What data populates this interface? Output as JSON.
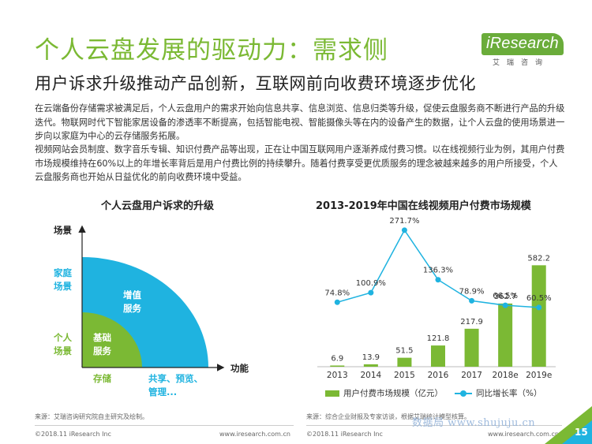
{
  "header": {
    "title": "个人云盘发展的驱动力：需求侧",
    "subtitle": "用户诉求升级推动产品创新，互联网前向收费环境逐步优化"
  },
  "logo": {
    "text": "iResearch",
    "cn": "艾瑞咨询"
  },
  "body": {
    "para1": "在云端备份存储需求被满足后，个人云盘用户的需求开始向信息共享、信息浏览、信息归类等升级，促使云盘服务商不断进行产品的升级迭代。物联网时代下智能家居设备的渗透率不断提高，包括智能电视、智能摄像头等在内的设备产生的数据，让个人云盘的使用场景进一步向以家庭为中心的云存储服务拓展。",
    "para2": "视频网站会员制度、数字音乐专辑、知识付费产品等出现，正在让中国互联网用户逐渐养成付费习惯。以在线视频行业为例，其用户付费市场规模维持在60%以上的年增长率背后是用户付费比例的持续攀升。随着付费享受更优质服务的理念被越来越多的用户所接受，个人云盘服务商也开始从日益优化的前向收费环境中受益。"
  },
  "diagram": {
    "title": "个人云盘用户诉求的升级",
    "y_axis_label": "场景",
    "x_axis_label": "功能",
    "scene_family": "家庭\n场景",
    "scene_personal": "个人\n场景",
    "value_added": "增值\n服务",
    "basic": "基础\n服务",
    "func_storage": "存储",
    "func_share": "共享、预览、\n管理...",
    "colors": {
      "outer": "#1fb3e0",
      "inner": "#7bb934"
    }
  },
  "chart_data": {
    "type": "bar",
    "title": "2013-2019年中国在线视频用户付费市场规模",
    "categories": [
      "2013",
      "2014",
      "2015",
      "2016",
      "2017",
      "2018e",
      "2019e"
    ],
    "series": [
      {
        "name": "用户付费市场规模（亿元）",
        "type": "bar",
        "values": [
          6.9,
          13.9,
          51.5,
          121.8,
          217.9,
          362.7,
          582.2
        ]
      },
      {
        "name": "同比增长率（%）",
        "type": "line",
        "values": [
          74.8,
          100.9,
          271.7,
          136.3,
          78.9,
          66.5,
          60.5
        ],
        "labels": [
          "74.8%",
          "100.9%",
          "271.7%",
          "136.3%",
          "78.9%",
          "66.5%",
          "60.5%"
        ]
      }
    ],
    "bar_labels": [
      "6.9",
      "13.9",
      "51.5",
      "121.8",
      "217.9",
      "362.7",
      "582.2"
    ],
    "ylim": [
      0,
      620
    ],
    "line_ylim": [
      0,
      280
    ],
    "grid": false,
    "legend": "bottom",
    "colors": {
      "bar": "#7bb934",
      "line": "#1fb3e0"
    }
  },
  "footer": {
    "source_left": "来源：艾瑞咨询研究院自主研究及绘制。",
    "source_right": "来源：综合企业财报及专家访谈，根据艾瑞统计模型核算。",
    "copyright_left": "©2018.11 iResearch Inc",
    "url_left": "www.iresearch.com.cn",
    "copyright_right": "©2018.11 iResearch Inc",
    "url_right": "www.iresearch.com.cn",
    "watermark": "数据局 www.shujuju.cn",
    "page_number": "15"
  }
}
